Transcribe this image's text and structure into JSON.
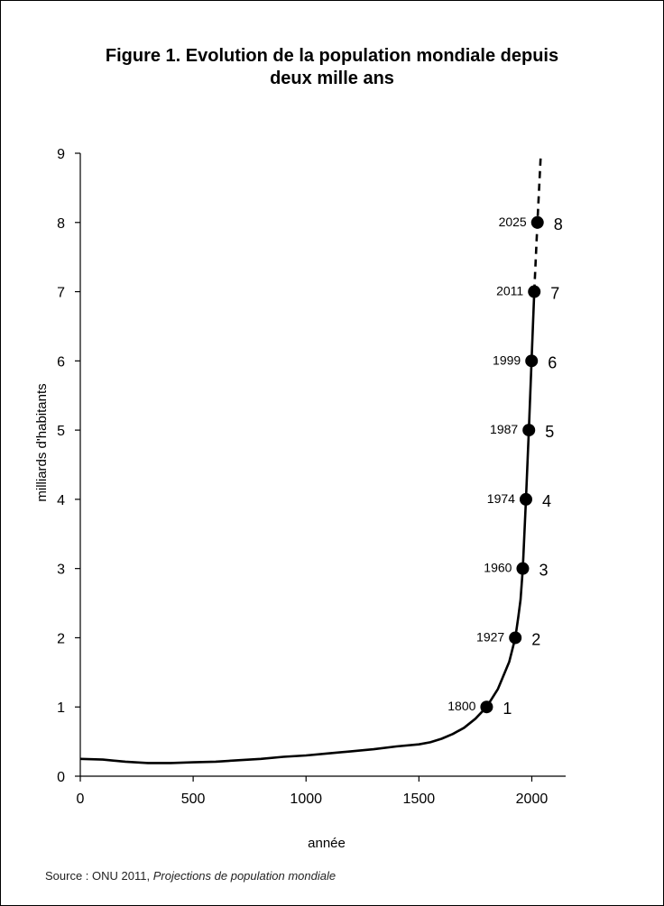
{
  "chart_data": {
    "type": "line",
    "title_line1": "Figure 1. Evolution de la population mondiale depuis",
    "title_line2": "deux mille ans",
    "xlabel": "année",
    "ylabel": "milliards d'habitants",
    "xlim": [
      0,
      2150
    ],
    "ylim": [
      0,
      9
    ],
    "xticks": [
      0,
      500,
      1000,
      1500,
      2000
    ],
    "yticks": [
      0,
      1,
      2,
      3,
      4,
      5,
      6,
      7,
      8,
      9
    ],
    "grid": false,
    "legend": "none",
    "series": [
      {
        "style": "solid",
        "x": [
          0,
          100,
          200,
          300,
          400,
          500,
          600,
          700,
          800,
          900,
          1000,
          1100,
          1200,
          1300,
          1400,
          1500,
          1550,
          1600,
          1650,
          1700,
          1750,
          1800,
          1850,
          1900,
          1927,
          1940,
          1950,
          1960,
          1974,
          1987,
          1999,
          2011
        ],
        "y": [
          0.25,
          0.24,
          0.21,
          0.19,
          0.19,
          0.2,
          0.21,
          0.23,
          0.25,
          0.28,
          0.3,
          0.33,
          0.36,
          0.39,
          0.43,
          0.46,
          0.49,
          0.54,
          0.61,
          0.7,
          0.83,
          1.0,
          1.26,
          1.65,
          2.0,
          2.3,
          2.55,
          3.0,
          4.0,
          5.0,
          6.0,
          7.0
        ]
      },
      {
        "style": "dashed",
        "x": [
          2011,
          2025,
          2040
        ],
        "y": [
          7.0,
          8.0,
          9.0
        ]
      }
    ],
    "milestones": [
      {
        "year": 1800,
        "value": 1,
        "year_label": "1800",
        "value_label": "1"
      },
      {
        "year": 1927,
        "value": 2,
        "year_label": "1927",
        "value_label": "2"
      },
      {
        "year": 1960,
        "value": 3,
        "year_label": "1960",
        "value_label": "3"
      },
      {
        "year": 1974,
        "value": 4,
        "year_label": "1974",
        "value_label": "4"
      },
      {
        "year": 1987,
        "value": 5,
        "year_label": "1987",
        "value_label": "5"
      },
      {
        "year": 1999,
        "value": 6,
        "year_label": "1999",
        "value_label": "6"
      },
      {
        "year": 2011,
        "value": 7,
        "year_label": "2011",
        "value_label": "7"
      },
      {
        "year": 2025,
        "value": 8,
        "year_label": "2025",
        "value_label": "8"
      }
    ]
  },
  "source": {
    "prefix": "Source : ONU 2011, ",
    "title": "Projections de population mondiale"
  }
}
